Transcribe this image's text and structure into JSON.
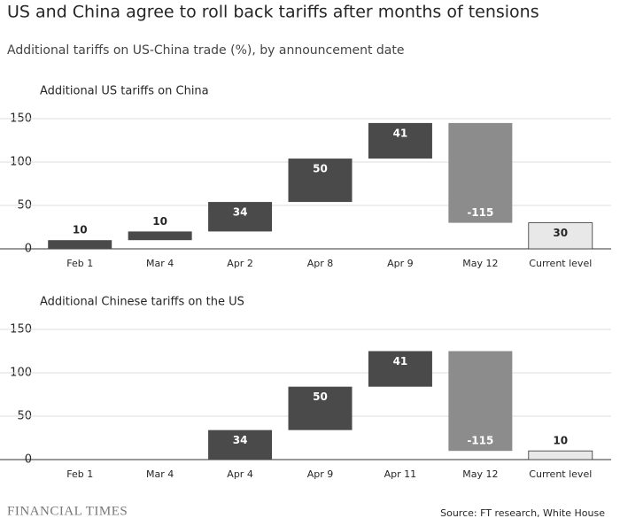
{
  "title": "US and China agree to roll back tariffs after months of tensions",
  "subtitle": "Additional tariffs on US-China trade (%), by announcement date",
  "source": "Source: FT research, White House",
  "brand": "FINANCIAL TIMES",
  "chart_data": [
    {
      "type": "waterfall",
      "title": "Additional US tariffs on China",
      "categories": [
        "Feb 1",
        "Mar 4",
        "Apr 2",
        "Apr 8",
        "Apr 9",
        "May 12",
        "Current level"
      ],
      "values": [
        10,
        10,
        34,
        50,
        41,
        -115,
        30
      ],
      "ylim": [
        0,
        150
      ],
      "yticks": [
        0,
        50,
        100,
        150
      ],
      "grid": true,
      "colors": {
        "increase": "#4a4a4a",
        "decrease": "#8c8c8c",
        "total": "#e8e8e8"
      }
    },
    {
      "type": "waterfall",
      "title": "Additional Chinese tariffs on the US",
      "categories": [
        "Feb 1",
        "Mar 4",
        "Apr 4",
        "Apr 9",
        "Apr 11",
        "May 12",
        "Current level"
      ],
      "values": [
        null,
        null,
        34,
        50,
        41,
        -115,
        10
      ],
      "ylim": [
        0,
        150
      ],
      "yticks": [
        0,
        50,
        100,
        150
      ],
      "grid": true,
      "colors": {
        "increase": "#4a4a4a",
        "decrease": "#8c8c8c",
        "total": "#e8e8e8"
      }
    }
  ]
}
